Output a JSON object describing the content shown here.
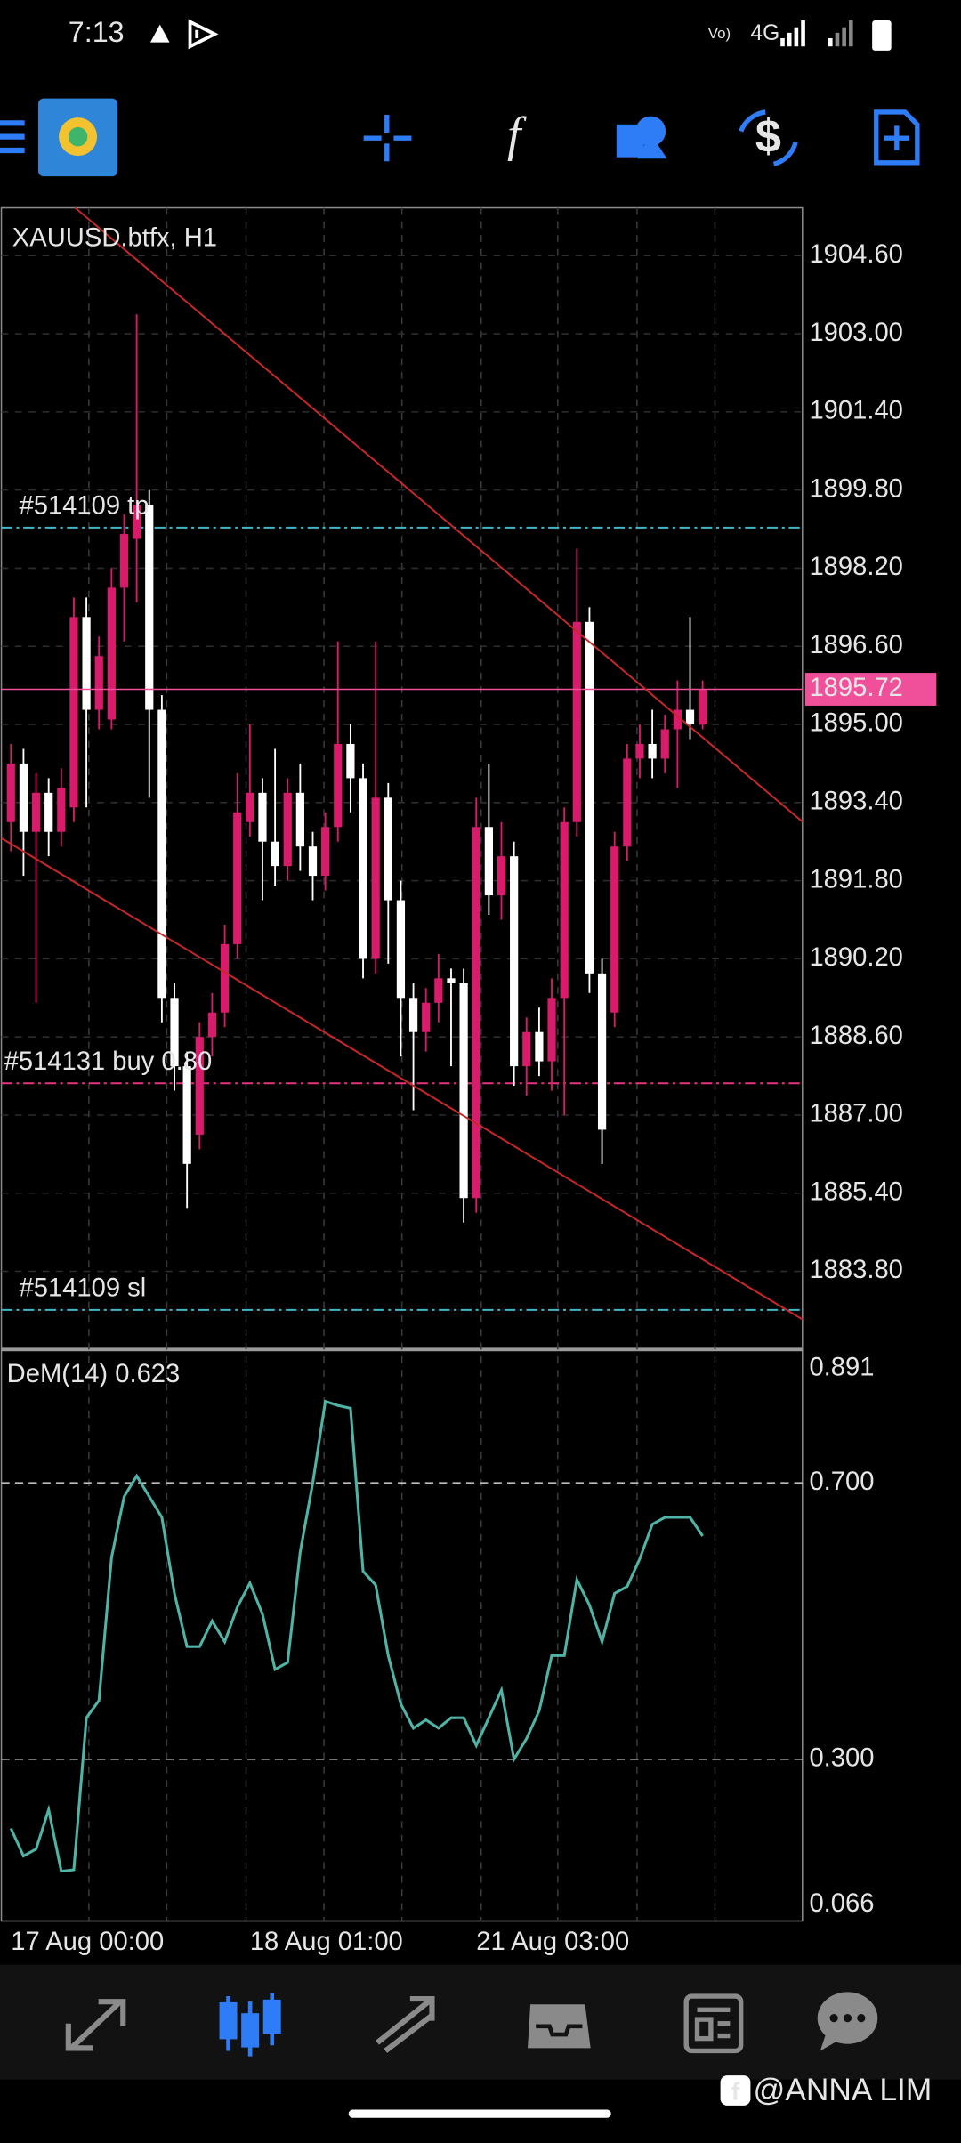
{
  "status_bar": {
    "time": "7:13",
    "network": "4G"
  },
  "chart_data": [
    {
      "type": "candlestick",
      "title": "XAUUSD.btfx, H1",
      "categories": [
        "17 Aug 00:00",
        null,
        null,
        null,
        null,
        null,
        null,
        null,
        null,
        null,
        null,
        null,
        null,
        null,
        null,
        null,
        null,
        null,
        null,
        "18 Aug 01:00",
        null,
        null,
        null,
        null,
        null,
        null,
        null,
        null,
        null,
        null,
        null,
        null,
        null,
        null,
        null,
        null,
        null,
        "21 Aug 03:00",
        null,
        null,
        null,
        null,
        null,
        null,
        null,
        null,
        null,
        null,
        null,
        null,
        null,
        null,
        null,
        null,
        null,
        null
      ],
      "open": [
        1893.0,
        1894.2,
        1892.8,
        1893.6,
        1892.8,
        1893.3,
        1897.2,
        1895.3,
        1895.1,
        1897.8,
        1898.8,
        1899.5,
        1895.3,
        1889.4,
        1888.0,
        1886.6,
        1888.6,
        1889.1,
        1890.5,
        1893.0,
        1893.6,
        1892.6,
        1892.1,
        1893.6,
        1892.5,
        1891.9,
        1892.9,
        1894.6,
        1893.9,
        1890.2,
        1893.5,
        1891.4,
        1889.4,
        1888.7,
        1889.3,
        1889.8,
        1889.7,
        1885.3,
        1892.9,
        1891.5,
        1892.3,
        1888.0,
        1888.7,
        1888.1,
        1889.4,
        1893.0,
        1897.1,
        1889.9,
        1889.1,
        1892.5,
        1894.3,
        1894.6,
        1894.3,
        1894.9,
        1895.3,
        1895.0
      ],
      "high": [
        1894.6,
        1894.5,
        1894.0,
        1893.9,
        1894.1,
        1897.6,
        1897.6,
        1896.8,
        1898.2,
        1899.3,
        1903.4,
        1899.8,
        1895.6,
        1889.7,
        1888.3,
        1888.9,
        1889.5,
        1890.9,
        1894.0,
        1895.0,
        1893.9,
        1894.5,
        1893.9,
        1894.2,
        1892.8,
        1893.2,
        1896.7,
        1895.0,
        1894.2,
        1896.7,
        1893.8,
        1891.8,
        1889.7,
        1889.6,
        1890.3,
        1890.0,
        1890.0,
        1893.5,
        1894.2,
        1893.0,
        1892.6,
        1889.0,
        1889.2,
        1889.8,
        1893.3,
        1898.6,
        1897.4,
        1890.2,
        1892.8,
        1894.6,
        1895.0,
        1895.3,
        1895.2,
        1895.9,
        1897.2,
        1895.9
      ],
      "low": [
        1892.4,
        1891.9,
        1889.3,
        1892.3,
        1892.5,
        1893.0,
        1893.3,
        1894.9,
        1894.9,
        1896.7,
        1897.5,
        1893.5,
        1888.9,
        1887.5,
        1885.1,
        1886.3,
        1888.2,
        1888.8,
        1890.2,
        1892.7,
        1891.4,
        1891.7,
        1891.8,
        1892.0,
        1891.4,
        1891.6,
        1892.6,
        1893.2,
        1889.8,
        1889.9,
        1890.1,
        1888.2,
        1887.1,
        1888.3,
        1888.9,
        1888.0,
        1884.8,
        1885.0,
        1891.1,
        1891.0,
        1887.6,
        1887.4,
        1887.8,
        1887.5,
        1887.0,
        1892.7,
        1889.5,
        1886.0,
        1888.8,
        1892.2,
        1893.9,
        1893.9,
        1894.0,
        1893.7,
        1894.7,
        1894.9
      ],
      "close": [
        1894.2,
        1892.8,
        1893.6,
        1892.8,
        1893.7,
        1897.2,
        1895.3,
        1896.4,
        1897.8,
        1898.9,
        1899.5,
        1895.3,
        1889.4,
        1888.0,
        1886.0,
        1888.6,
        1889.1,
        1890.5,
        1893.2,
        1893.6,
        1892.6,
        1892.1,
        1893.6,
        1892.5,
        1891.9,
        1892.9,
        1894.6,
        1893.9,
        1890.2,
        1893.5,
        1891.4,
        1889.4,
        1888.7,
        1889.3,
        1889.8,
        1889.7,
        1885.3,
        1892.9,
        1891.5,
        1892.3,
        1888.0,
        1888.7,
        1888.1,
        1889.4,
        1893.0,
        1897.1,
        1889.9,
        1886.7,
        1892.5,
        1894.3,
        1894.6,
        1894.3,
        1894.9,
        1895.3,
        1895.0,
        1895.72
      ],
      "up_color": "#d81b6a",
      "down_color": "#ffffff",
      "ylim": [
        1882.2,
        1905.58
      ],
      "yticks": [
        {
          "value": 1904.6,
          "label": "1904.60"
        },
        {
          "value": 1903.0,
          "label": "1903.00"
        },
        {
          "value": 1901.4,
          "label": "1901.40"
        },
        {
          "value": 1899.8,
          "label": "1899.80"
        },
        {
          "value": 1898.2,
          "label": "1898.20"
        },
        {
          "value": 1896.6,
          "label": "1896.60"
        },
        {
          "value": 1895.0,
          "label": "1895.00"
        },
        {
          "value": 1893.4,
          "label": "1893.40"
        },
        {
          "value": 1891.8,
          "label": "1891.80"
        },
        {
          "value": 1890.2,
          "label": "1890.20"
        },
        {
          "value": 1888.6,
          "label": "1888.60"
        },
        {
          "value": 1887.0,
          "label": "1887.00"
        },
        {
          "value": 1885.4,
          "label": "1885.40"
        },
        {
          "value": 1883.8,
          "label": "1883.80"
        }
      ],
      "grid": true,
      "current_price": 1895.72,
      "current_price_color": "#f0509a",
      "levels": [
        {
          "label": "#514109 tp",
          "price": 1899.03,
          "color": "#3fb8c8"
        },
        {
          "label": "#514131 buy 0.80",
          "price": 1887.65,
          "color": "#e8337f"
        },
        {
          "label": "#514109 sl",
          "price": 1883.01,
          "color": "#3fb8c8"
        }
      ]
    },
    {
      "type": "line",
      "title": "DeM(14) 0.623",
      "color": "#4fb3a6",
      "values": [
        0.2,
        0.16,
        0.17,
        0.227,
        0.138,
        0.14,
        0.36,
        0.385,
        0.592,
        0.68,
        0.71,
        0.68,
        0.65,
        0.54,
        0.463,
        0.463,
        0.5,
        0.47,
        0.52,
        0.555,
        0.51,
        0.43,
        0.44,
        0.6,
        0.7,
        0.818,
        0.812,
        0.808,
        0.572,
        0.552,
        0.45,
        0.38,
        0.345,
        0.357,
        0.345,
        0.36,
        0.36,
        0.32,
        0.36,
        0.4,
        0.3,
        0.33,
        0.37,
        0.45,
        0.45,
        0.56,
        0.523,
        0.47,
        0.54,
        0.55,
        0.59,
        0.64,
        0.65,
        0.65,
        0.65,
        0.623
      ],
      "ylim": [
        0.066,
        0.891
      ],
      "yticks": [
        0.891,
        {
          "value": 0.7,
          "label": "0.700"
        },
        {
          "value": 0.3,
          "label": "0.300"
        },
        0.066
      ]
    }
  ],
  "watermark": "@ANNA LIM"
}
